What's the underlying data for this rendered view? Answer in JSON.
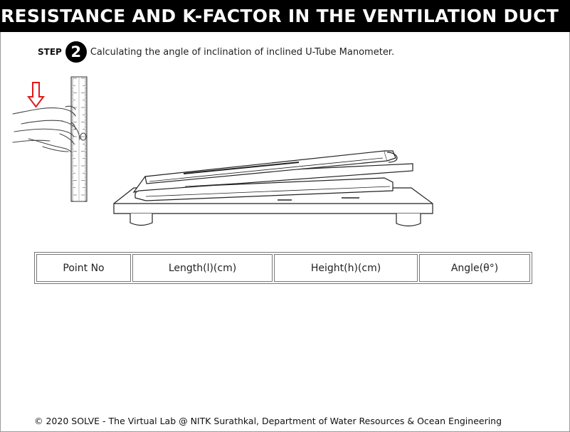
{
  "header": {
    "title": "RESISTANCE AND K-FACTOR IN THE VENTILATION DUCT"
  },
  "step": {
    "label": "STEP",
    "number": "2",
    "instruction": "Calculating the angle of inclination of inclined U-Tube Manometer."
  },
  "scene": {
    "pointer_arrow_color": "#e0191b"
  },
  "table": {
    "headers": [
      "Point No",
      "Length(l)(cm)",
      "Height(h)(cm)",
      "Angle(θ°)"
    ]
  },
  "footer": {
    "text": "© 2020 SOLVE - The Virtual Lab @ NITK Surathkal, Department of Water Resources & Ocean Engineering"
  }
}
